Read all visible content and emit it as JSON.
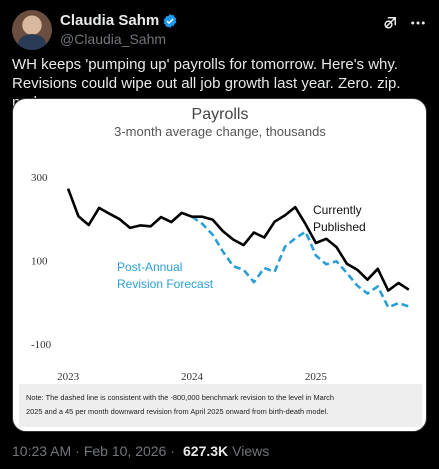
{
  "tweet": {
    "display_name": "Claudia Sahm",
    "handle": "@Claudia_Sahm",
    "text": "WH keeps 'pumping up' payrolls for tomorrow. Here's why. Revisions could wipe out all job growth last year. Zero. zip. nada.",
    "time": "10:23 AM",
    "date": "Feb 10, 2026",
    "views_count": "627.3K",
    "views_label": "Views"
  },
  "icons": {
    "verified": "verified-badge-icon",
    "grok": "grok-icon",
    "more": "more-icon"
  },
  "colors": {
    "published": "#000000",
    "forecast": "#2a9fd6",
    "verified": "#1d9bf0",
    "note_bg": "#eeeeee"
  },
  "chart_data": {
    "type": "line",
    "title": "Payrolls",
    "subtitle": "3-month average change, thousands",
    "ylim": [
      -100,
      300
    ],
    "y_ticks": [
      "300",
      "100",
      "-100"
    ],
    "y_tick_values": [
      300,
      100,
      -100
    ],
    "x_ticks": [
      "2023",
      "2024",
      "2025"
    ],
    "x_tick_values": [
      0,
      12,
      24
    ],
    "xlim": [
      -0.3,
      33.6
    ],
    "annotations": {
      "published": "Currently Published",
      "forecast": "Post-Annual Revision Forecast"
    },
    "series": [
      {
        "name": "Currently Published",
        "style": "solid",
        "x": [
          0,
          1,
          2,
          3,
          4,
          5,
          6,
          7,
          8,
          9,
          10,
          11,
          12,
          13,
          14,
          15,
          16,
          17,
          18,
          19,
          20,
          21,
          22,
          23,
          24,
          25,
          26,
          27,
          28,
          29,
          30,
          31,
          32,
          33
        ],
        "values": [
          272,
          206,
          185,
          226,
          212,
          199,
          178,
          184,
          182,
          204,
          192,
          214,
          205,
          205,
          198,
          170,
          150,
          137,
          167,
          155,
          193,
          208,
          228,
          187,
          142,
          152,
          132,
          92,
          78,
          54,
          80,
          28,
          46,
          30
        ]
      },
      {
        "name": "Post-Annual Revision Forecast",
        "style": "dashed",
        "x": [
          12,
          13,
          14,
          15,
          16,
          17,
          18,
          19,
          20,
          21,
          22,
          23,
          24,
          25,
          26,
          27,
          28,
          29,
          30,
          31,
          32,
          33
        ],
        "values": [
          205,
          188,
          162,
          121,
          86,
          78,
          48,
          82,
          73,
          133,
          153,
          169,
          112,
          91,
          98,
          70,
          40,
          21,
          38,
          -12,
          -2,
          -10
        ]
      }
    ],
    "note": "Note: The dashed line is consistent with the -800,000 benchmark revision to the level in March 2025 and a 45 per month downward revision from April 2025 onward from birth-death model."
  }
}
